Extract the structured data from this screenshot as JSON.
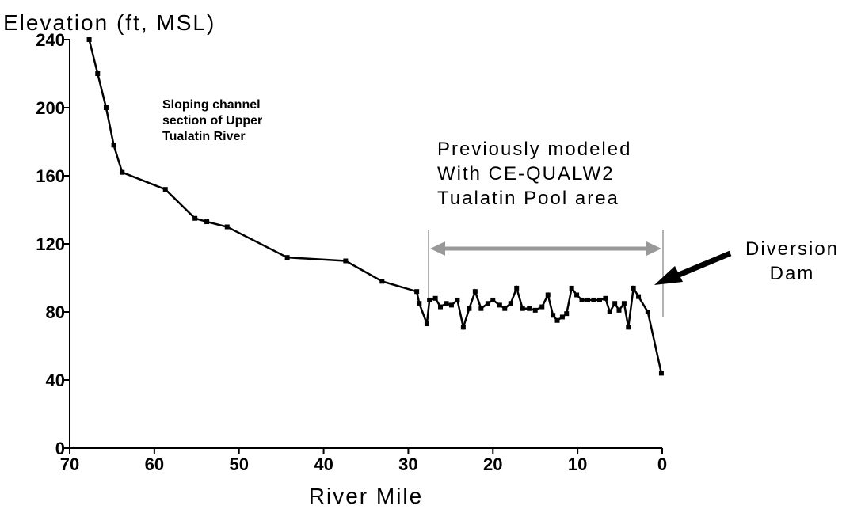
{
  "chart_data": {
    "type": "line",
    "y_label": "Elevation (ft, MSL)",
    "x_label": "River Mile",
    "xlim": [
      70,
      0
    ],
    "xticks": [
      70,
      60,
      50,
      40,
      30,
      20,
      10,
      0
    ],
    "ylim": [
      0,
      240
    ],
    "yticks": [
      0,
      40,
      80,
      120,
      160,
      200,
      240
    ],
    "series": [
      {
        "color": "#000000",
        "x": [
          67.7,
          66.7,
          65.7,
          64.8,
          63.8,
          58.7,
          55.2,
          53.8,
          51.4,
          44.3,
          37.4,
          33.1,
          29.0,
          28.7,
          27.8,
          27.5,
          26.8,
          26.2,
          25.5,
          24.9,
          24.2,
          23.5,
          22.8,
          22.1,
          21.4,
          20.6,
          20.0,
          19.2,
          18.6,
          17.9,
          17.2,
          16.5,
          15.7,
          15.0,
          14.2,
          13.5,
          12.9,
          12.4,
          11.8,
          11.3,
          10.7,
          10.1,
          9.5,
          8.8,
          8.1,
          7.4,
          6.7,
          6.2,
          5.6,
          5.1,
          4.5,
          4.0,
          3.4,
          2.8,
          1.7,
          0.1
        ],
        "values": [
          240,
          220,
          200,
          178,
          162,
          152,
          135,
          133,
          130,
          112,
          110,
          98,
          92,
          85,
          73,
          87,
          88,
          83,
          85,
          84,
          87,
          71,
          82,
          92,
          82,
          85,
          87,
          84,
          82,
          85,
          94,
          82,
          82,
          81,
          83,
          90,
          78,
          75,
          77,
          79,
          94,
          90,
          87,
          87,
          87,
          87,
          88,
          80,
          85,
          81,
          85,
          71,
          94,
          89,
          80,
          44
        ]
      }
    ],
    "annotations": [
      {
        "lines": [
          "Sloping channel",
          "section of Upper",
          "Tualatin River"
        ]
      },
      {
        "lines": [
          "Previously modeled",
          "With CE-QUALW2",
          "Tualatin Pool area"
        ]
      },
      {
        "lines": [
          "Diversion",
          "Dam"
        ]
      }
    ]
  }
}
